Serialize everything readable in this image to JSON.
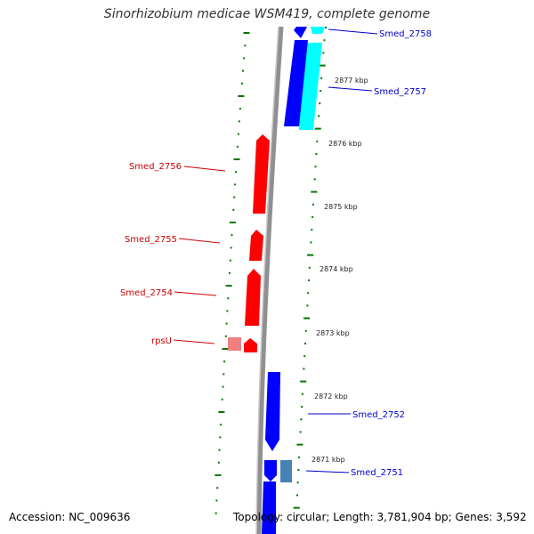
{
  "title": "Sinorhizobium medicae WSM419, complete genome",
  "footer": {
    "accession": "Accession: NC_009636",
    "summary": "Topology: circular; Length: 3,781,904 bp; Genes: 3,592"
  },
  "colors": {
    "forward_gene": "#ff0000",
    "forward_gene_light": "#f08080",
    "reverse_gene": "#0000ff",
    "reverse_gene_alt": "#00ffff",
    "reverse_gene_muted": "#4682b4",
    "backbone": "#808080",
    "tick": "#007700",
    "forward_label": "#cc0000",
    "reverse_label": "#0000cc"
  },
  "scale_labels": [
    "2877 kbp",
    "2876 kbp",
    "2875 kbp",
    "2874 kbp",
    "2873 kbp",
    "2872 kbp",
    "2871 kbp"
  ],
  "genes": [
    {
      "label": "Smed_2758",
      "strand": "reverse"
    },
    {
      "label": "Smed_2757",
      "strand": "reverse"
    },
    {
      "label": "Smed_2756",
      "strand": "forward"
    },
    {
      "label": "Smed_2755",
      "strand": "forward"
    },
    {
      "label": "Smed_2754",
      "strand": "forward"
    },
    {
      "label": "rpsU",
      "strand": "forward"
    },
    {
      "label": "Smed_2752",
      "strand": "reverse"
    },
    {
      "label": "Smed_2751",
      "strand": "reverse"
    }
  ]
}
